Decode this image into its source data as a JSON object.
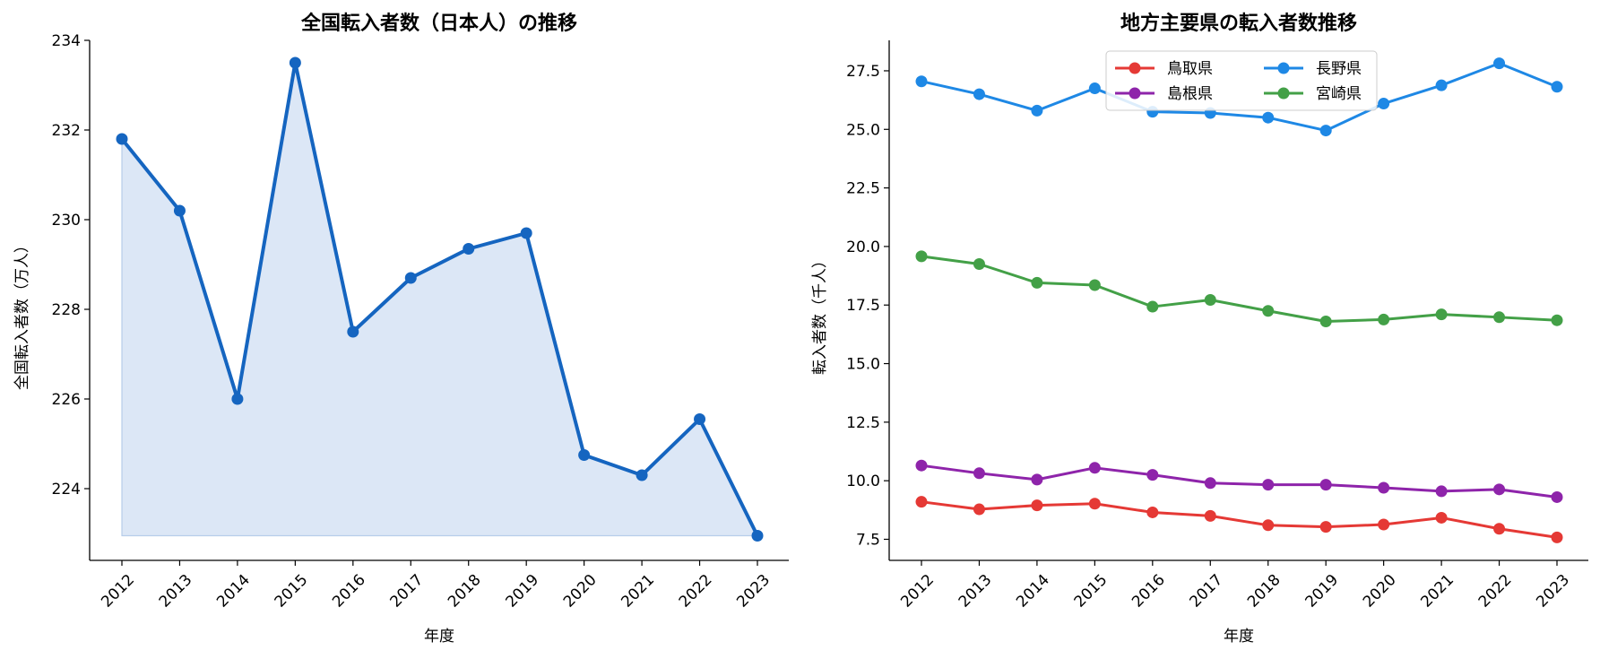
{
  "chart_data": [
    {
      "type": "area",
      "title": "全国転入者数（日本人）の推移",
      "xlabel": "年度",
      "ylabel": "全国転入者数（万人）",
      "categories": [
        "2012",
        "2013",
        "2014",
        "2015",
        "2016",
        "2017",
        "2018",
        "2019",
        "2020",
        "2021",
        "2022",
        "2023"
      ],
      "series": [
        {
          "color": "#1565c0",
          "fill_color": "#dce7f6",
          "values": [
            231.8,
            230.2,
            226.0,
            233.5,
            227.5,
            228.7,
            229.35,
            229.7,
            224.75,
            224.3,
            225.55,
            222.95
          ]
        }
      ],
      "ylim": [
        222.4,
        234.0
      ],
      "yticks": [
        224,
        226,
        228,
        230,
        232,
        234
      ],
      "ytick_labels": [
        "224",
        "226",
        "228",
        "230",
        "232",
        "234"
      ],
      "grid": false
    },
    {
      "type": "line",
      "title": "地方主要県の転入者数推移",
      "xlabel": "年度",
      "ylabel": "転入者数（千人）",
      "categories": [
        "2012",
        "2013",
        "2014",
        "2015",
        "2016",
        "2017",
        "2018",
        "2019",
        "2020",
        "2021",
        "2022",
        "2023"
      ],
      "series": [
        {
          "name": "鳥取県",
          "color": "#e53935",
          "values": [
            9.1,
            8.78,
            8.95,
            9.02,
            8.65,
            8.5,
            8.1,
            8.03,
            8.13,
            8.42,
            7.95,
            7.58
          ]
        },
        {
          "name": "島根県",
          "color": "#8e24aa",
          "values": [
            10.65,
            10.32,
            10.05,
            10.55,
            10.25,
            9.9,
            9.83,
            9.83,
            9.7,
            9.55,
            9.63,
            9.3
          ]
        },
        {
          "name": "長野県",
          "color": "#1e88e5",
          "values": [
            27.05,
            26.5,
            25.8,
            26.75,
            25.75,
            25.7,
            25.5,
            24.95,
            26.1,
            26.88,
            27.82,
            26.82
          ]
        },
        {
          "name": "宮崎県",
          "color": "#43a047",
          "values": [
            19.58,
            19.25,
            18.45,
            18.35,
            17.43,
            17.72,
            17.25,
            16.8,
            16.88,
            17.1,
            16.98,
            16.85
          ]
        }
      ],
      "ylim": [
        6.6,
        28.8
      ],
      "yticks": [
        7.5,
        10.0,
        12.5,
        15.0,
        17.5,
        20.0,
        22.5,
        25.0,
        27.5
      ],
      "ytick_labels": [
        "7.5",
        "10.0",
        "12.5",
        "15.0",
        "17.5",
        "20.0",
        "22.5",
        "25.0",
        "27.5"
      ],
      "legend": "upper-center",
      "grid": false
    }
  ]
}
